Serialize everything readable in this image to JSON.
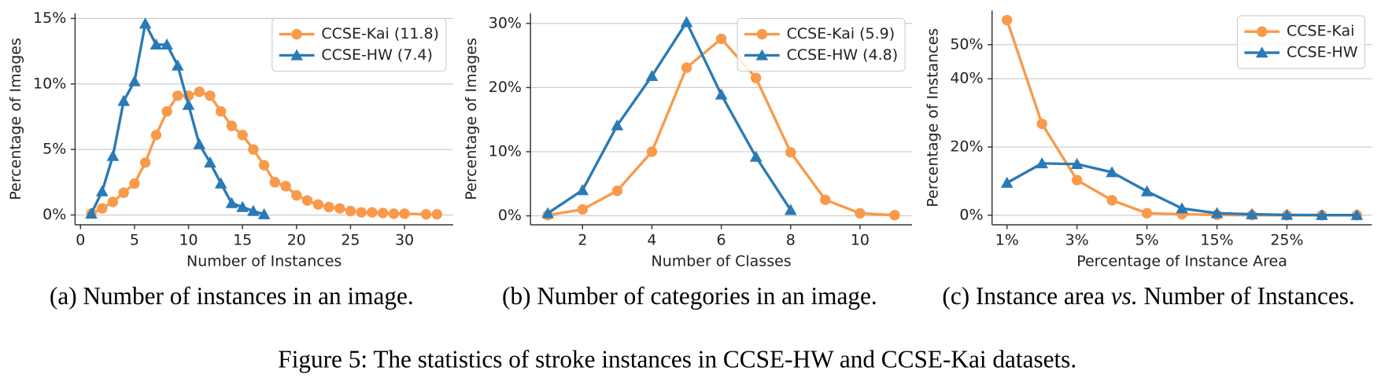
{
  "figure_caption": "Figure 5: The statistics of stroke instances in CCSE-HW and CCSE-Kai datasets.",
  "chart_data": [
    {
      "type": "line",
      "caption": "(a) Number of instances in an image.",
      "xlabel": "Number of Instances",
      "ylabel": "Percentage of Images",
      "xlim": [
        -0.5,
        34.5
      ],
      "xticks": [
        0,
        5,
        10,
        15,
        20,
        25,
        30
      ],
      "ylim": [
        -0.75,
        15.4
      ],
      "yticks": [
        {
          "value": 0,
          "label": "0%"
        },
        {
          "value": 5,
          "label": "5%"
        },
        {
          "value": 10,
          "label": "10%"
        },
        {
          "value": 15,
          "label": "15%"
        }
      ],
      "grid": true,
      "legend": "upper right",
      "series": [
        {
          "name": "CCSE-Kai (11.8)",
          "color": "#f89a4a",
          "marker": "circle",
          "x": [
            1,
            2,
            3,
            4,
            5,
            6,
            7,
            8,
            9,
            10,
            11,
            12,
            13,
            14,
            15,
            16,
            17,
            18,
            19,
            20,
            21,
            22,
            23,
            24,
            25,
            26,
            27,
            28,
            29,
            30,
            32,
            33
          ],
          "values": [
            0.1,
            0.5,
            1.0,
            1.7,
            2.4,
            4.0,
            6.1,
            7.9,
            9.1,
            9.1,
            9.4,
            9.1,
            7.9,
            6.8,
            6.1,
            5.0,
            3.8,
            2.5,
            2.2,
            1.5,
            1.1,
            0.8,
            0.6,
            0.5,
            0.3,
            0.2,
            0.2,
            0.15,
            0.1,
            0.1,
            0.05,
            0.05
          ]
        },
        {
          "name": "CCSE-HW (7.4)",
          "color": "#2a7ab5",
          "marker": "triangle",
          "x": [
            1,
            2,
            3,
            4,
            5,
            6,
            7,
            8,
            9,
            10,
            11,
            12,
            13,
            14,
            15,
            16,
            17
          ],
          "values": [
            0.1,
            1.8,
            4.5,
            8.7,
            10.2,
            14.6,
            13.0,
            13.0,
            11.4,
            8.4,
            5.4,
            4.0,
            2.4,
            0.9,
            0.6,
            0.3,
            0.05
          ]
        }
      ]
    },
    {
      "type": "line",
      "caption": "(b) Number of categories in an image.",
      "xlabel": "Number of Classes",
      "ylabel": "Percentage of Images",
      "xlim": [
        0.5,
        11.5
      ],
      "xticks": [
        2,
        4,
        6,
        8,
        10
      ],
      "ylim": [
        -1.4,
        31.6
      ],
      "yticks": [
        {
          "value": 0,
          "label": "0%"
        },
        {
          "value": 10,
          "label": "10%"
        },
        {
          "value": 20,
          "label": "20%"
        },
        {
          "value": 30,
          "label": "30%"
        }
      ],
      "grid": true,
      "legend": "upper right",
      "series": [
        {
          "name": "CCSE-Kai (5.9)",
          "color": "#f89a4a",
          "marker": "circle",
          "x": [
            1,
            2,
            3,
            4,
            5,
            6,
            7,
            8,
            9,
            10,
            11
          ],
          "values": [
            0.1,
            1.0,
            3.9,
            10.0,
            23.1,
            27.6,
            21.5,
            9.9,
            2.5,
            0.4,
            0.1
          ]
        },
        {
          "name": "CCSE-HW (4.8)",
          "color": "#2a7ab5",
          "marker": "triangle",
          "x": [
            1,
            2,
            3,
            4,
            5,
            6,
            7,
            8
          ],
          "values": [
            0.4,
            4.0,
            14.1,
            21.8,
            30.2,
            18.9,
            9.2,
            0.9
          ]
        }
      ]
    },
    {
      "type": "line",
      "caption": [
        "(c) Instance area ",
        "vs.",
        " Number of Instances."
      ],
      "xlabel": "Percentage of Instance Area",
      "ylabel": "Percentage of Instances",
      "categories": [
        "1%",
        null,
        "3%",
        null,
        "5%",
        null,
        "15%",
        null,
        "25%",
        null,
        null
      ],
      "ylim": [
        -2.8,
        60
      ],
      "yticks": [
        {
          "value": 0,
          "label": "0%"
        },
        {
          "value": 20,
          "label": "20%"
        },
        {
          "value": 40,
          "label": "40%"
        },
        {
          "value": 50,
          "label": "50%"
        }
      ],
      "grid": true,
      "legend": "upper right",
      "series": [
        {
          "name": "CCSE-Kai",
          "color": "#f89a4a",
          "marker": "circle",
          "values": [
            57.2,
            26.8,
            10.3,
            4.4,
            0.6,
            0.3,
            0.1,
            0.05,
            0,
            0,
            0
          ]
        },
        {
          "name": "CCSE-HW",
          "color": "#2a7ab5",
          "marker": "triangle",
          "values": [
            9.5,
            15.2,
            15.0,
            12.6,
            7.0,
            2.0,
            0.6,
            0.3,
            0.1,
            0.05,
            0.05
          ]
        }
      ]
    }
  ]
}
